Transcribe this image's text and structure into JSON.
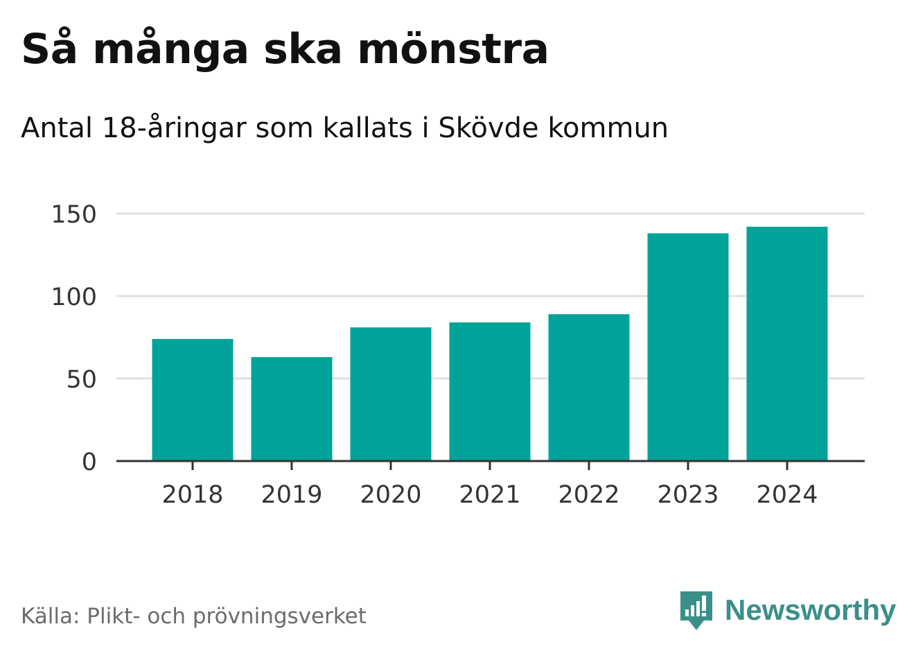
{
  "header": {
    "title": "Så många ska mönstra",
    "subtitle": "Antal 18-åringar som kallats i Skövde kommun"
  },
  "footer": {
    "source": "Källa: Plikt- och prövningsverket",
    "brand": "Newsworthy",
    "brand_icon": "newsworthy-logo-icon"
  },
  "colors": {
    "bar": "#00a399",
    "grid": "#e0e0e0",
    "axis": "#333333",
    "tick_text": "#333333",
    "brand": "#3a8f8a"
  },
  "chart_data": {
    "type": "bar",
    "title": "Så många ska mönstra",
    "subtitle": "Antal 18-åringar som kallats i Skövde kommun",
    "xlabel": "",
    "ylabel": "",
    "categories": [
      "2018",
      "2019",
      "2020",
      "2021",
      "2022",
      "2023",
      "2024"
    ],
    "values": [
      74,
      63,
      81,
      84,
      89,
      138,
      142
    ],
    "ylim": [
      0,
      150
    ],
    "yticks": [
      0,
      50,
      100,
      150
    ],
    "ytick_labels": [
      "0",
      "50",
      "100",
      "150"
    ],
    "grid": true,
    "legend": "none"
  }
}
